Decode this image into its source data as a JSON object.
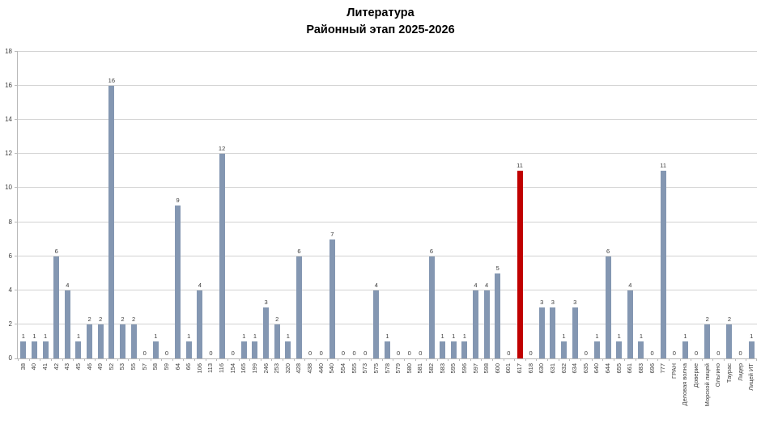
{
  "chart_data": {
    "type": "bar",
    "title": "Литература",
    "subtitle": "Районный этап 2025-2026",
    "xlabel": "",
    "ylabel": "",
    "ylim": [
      0,
      18
    ],
    "ytick_step": 2,
    "ytick_labels": [
      "0",
      "2",
      "4",
      "6",
      "8",
      "10",
      "12",
      "14",
      "16",
      "18"
    ],
    "grid": true,
    "legend": false,
    "value_labels_shown": true,
    "categories": [
      "38",
      "40",
      "41",
      "42",
      "43",
      "45",
      "46",
      "49",
      "52",
      "53",
      "55",
      "57",
      "58",
      "59",
      "64",
      "66",
      "106",
      "113",
      "116",
      "154",
      "165",
      "199",
      "246",
      "253",
      "320",
      "428",
      "438",
      "440",
      "540",
      "554",
      "555",
      "573",
      "575",
      "578",
      "579",
      "580",
      "581",
      "582",
      "583",
      "595",
      "596",
      "597",
      "598",
      "600",
      "601",
      "617",
      "618",
      "630",
      "631",
      "632",
      "634",
      "635",
      "640",
      "644",
      "655",
      "661",
      "683",
      "696",
      "777",
      "ГРАН",
      "Деловая волна",
      "Доверие",
      "Морской лицей",
      "Ольгино",
      "Таурас",
      "Лидер",
      "Лицей ИТ"
    ],
    "values": [
      1,
      1,
      1,
      6,
      4,
      1,
      2,
      2,
      16,
      2,
      2,
      0,
      1,
      0,
      9,
      1,
      4,
      0,
      12,
      0,
      1,
      1,
      3,
      2,
      1,
      6,
      0,
      0,
      7,
      0,
      0,
      0,
      4,
      1,
      0,
      0,
      0,
      6,
      1,
      1,
      1,
      4,
      4,
      5,
      0,
      11,
      0,
      3,
      3,
      1,
      3,
      0,
      1,
      6,
      1,
      4,
      1,
      0,
      11,
      0,
      1,
      0,
      2,
      0,
      2,
      0,
      1
    ],
    "highlight_category": "617",
    "highlight_index": 45,
    "colors": {
      "bar": "#8497b2",
      "highlight_bar": "#c00000",
      "gridline": "#d2d2d2",
      "axis": "#b9b9b9",
      "tick_text": "#404040",
      "value_text": "#3b3b3b",
      "title_text": "#000000"
    }
  }
}
